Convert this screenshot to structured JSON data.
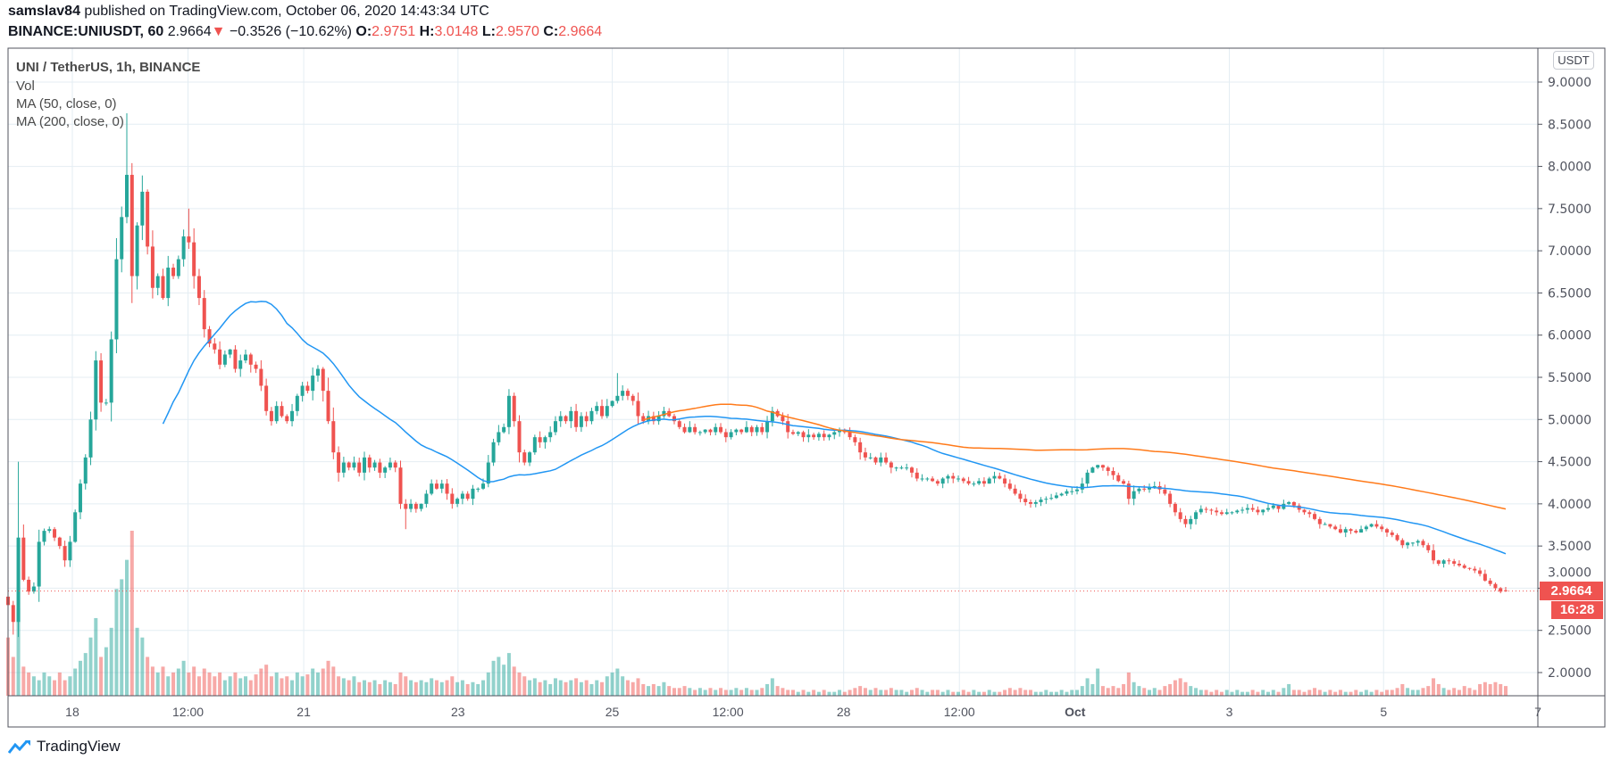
{
  "header": {
    "publisher": "samslav84",
    "published_text": "published on TradingView.com, October 06, 2020 14:43:34 UTC",
    "symbol": "BINANCE:UNIUSDT, 60",
    "last": "2.9664",
    "change": "−0.3526 (−10.62%)",
    "o_label": "O:",
    "o": "2.9751",
    "h_label": "H:",
    "h": "3.0148",
    "l_label": "L:",
    "l": "2.9570",
    "c_label": "C:",
    "c": "2.9664"
  },
  "legend": {
    "title": "UNI / TetherUS, 1h, BINANCE",
    "vol": "Vol",
    "ma50": "MA (50, close, 0)",
    "ma200": "MA (200, close, 0)"
  },
  "axis": {
    "currency": "USDT",
    "price_label": "2.9664",
    "countdown": "16:28"
  },
  "footer": {
    "brand": "TradingView"
  },
  "colors": {
    "up": "#26a69a",
    "down": "#ef5350",
    "ma50": "#2196f3",
    "ma200": "#ff7a1a",
    "grid": "#e4edf3"
  },
  "chart_data": {
    "type": "candlestick",
    "title": "UNI / TetherUS, 1h, BINANCE",
    "start": "2020-09-17T04:00",
    "end": "2020-10-06T14:00",
    "ylim": [
      1.73,
      9.25
    ],
    "y_ticks": [
      "9.0000",
      "8.5000",
      "8.0000",
      "7.5000",
      "7.0000",
      "6.5000",
      "6.0000",
      "5.5000",
      "5.0000",
      "4.5000",
      "4.0000",
      "3.5000",
      "3.0000",
      "2.5000",
      "2.0000"
    ],
    "x_ticks": [
      {
        "label": "18",
        "time": "2020-09-18T00:00"
      },
      {
        "label": "12:00",
        "time": "2020-09-19T12:00"
      },
      {
        "label": "21",
        "time": "2020-09-21T00:00"
      },
      {
        "label": "23",
        "time": "2020-09-23T00:00"
      },
      {
        "label": "25",
        "time": "2020-09-25T00:00"
      },
      {
        "label": "12:00",
        "time": "2020-09-26T12:00"
      },
      {
        "label": "28",
        "time": "2020-09-28T00:00"
      },
      {
        "label": "12:00",
        "time": "2020-09-29T12:00"
      },
      {
        "label": "Oct",
        "time": "2020-10-01T00:00"
      },
      {
        "label": "3",
        "time": "2020-10-03T00:00"
      },
      {
        "label": "5",
        "time": "2020-10-05T00:00"
      },
      {
        "label": "7",
        "time": "2020-10-07T00:00"
      }
    ],
    "closes": [
      2.8,
      2.6,
      3.6,
      3.1,
      2.96,
      3.02,
      3.55,
      3.68,
      3.7,
      3.6,
      3.5,
      3.33,
      3.55,
      3.9,
      4.24,
      4.55,
      5.0,
      5.7,
      5.2,
      5.2,
      5.95,
      6.9,
      7.4,
      7.9,
      6.7,
      7.3,
      7.7,
      7.05,
      6.56,
      6.7,
      6.44,
      6.8,
      6.7,
      6.9,
      7.17,
      7.1,
      6.7,
      6.44,
      6.07,
      5.9,
      5.83,
      5.65,
      5.77,
      5.83,
      5.6,
      5.7,
      5.77,
      5.65,
      5.6,
      5.4,
      5.1,
      4.98,
      5.16,
      5.04,
      4.98,
      5.1,
      5.28,
      5.4,
      5.34,
      5.52,
      5.6,
      5.34,
      4.98,
      4.61,
      4.37,
      4.49,
      4.43,
      4.49,
      4.37,
      4.55,
      4.43,
      4.49,
      4.37,
      4.43,
      4.49,
      4.43,
      4.0,
      3.94,
      4.0,
      3.94,
      4.0,
      4.12,
      4.24,
      4.18,
      4.24,
      4.12,
      4.0,
      4.06,
      4.12,
      4.06,
      4.18,
      4.18,
      4.24,
      4.49,
      4.73,
      4.85,
      4.91,
      5.28,
      4.98,
      4.61,
      4.49,
      4.61,
      4.79,
      4.73,
      4.79,
      4.85,
      4.98,
      5.04,
      4.98,
      5.1,
      4.91,
      5.04,
      4.98,
      5.1,
      5.16,
      5.04,
      5.16,
      5.22,
      5.28,
      5.34,
      5.28,
      5.22,
      5.04,
      4.98,
      5.04,
      4.98,
      5.04,
      5.1,
      5.04,
      4.98,
      4.91,
      4.85,
      4.91,
      4.85,
      4.85,
      4.88,
      4.85,
      4.91,
      4.85,
      4.79,
      4.85,
      4.88,
      4.85,
      4.91,
      4.85,
      4.91,
      4.85,
      4.98,
      5.1,
      5.04,
      4.98,
      4.85,
      4.83,
      4.85,
      4.79,
      4.82,
      4.79,
      4.83,
      4.79,
      4.82,
      4.85,
      4.88,
      4.85,
      4.79,
      4.73,
      4.61,
      4.55,
      4.55,
      4.49,
      4.55,
      4.49,
      4.43,
      4.43,
      4.43,
      4.43,
      4.37,
      4.3,
      4.3,
      4.3,
      4.27,
      4.24,
      4.3,
      4.33,
      4.3,
      4.3,
      4.27,
      4.24,
      4.24,
      4.27,
      4.24,
      4.3,
      4.33,
      4.3,
      4.24,
      4.18,
      4.12,
      4.06,
      4.02,
      4.0,
      4.02,
      4.05,
      4.06,
      4.07,
      4.1,
      4.12,
      4.15,
      4.15,
      4.17,
      4.24,
      4.37,
      4.43,
      4.46,
      4.43,
      4.39,
      4.34,
      4.27,
      4.24,
      4.06,
      4.15,
      4.18,
      4.17,
      4.2,
      4.21,
      4.17,
      4.12,
      4.0,
      3.9,
      3.82,
      3.76,
      3.82,
      3.9,
      3.94,
      3.93,
      3.92,
      3.9,
      3.88,
      3.9,
      3.9,
      3.92,
      3.93,
      3.95,
      3.93,
      3.9,
      3.93,
      3.95,
      3.98,
      3.94,
      4.0,
      4.02,
      3.98,
      3.93,
      3.9,
      3.88,
      3.82,
      3.76,
      3.76,
      3.73,
      3.7,
      3.66,
      3.7,
      3.68,
      3.66,
      3.7,
      3.73,
      3.76,
      3.73,
      3.7,
      3.66,
      3.63,
      3.57,
      3.51,
      3.54,
      3.54,
      3.56,
      3.51,
      3.45,
      3.33,
      3.29,
      3.33,
      3.32,
      3.29,
      3.27,
      3.24,
      3.23,
      3.21,
      3.17,
      3.09,
      3.05,
      3.0,
      2.96,
      2.9664
    ],
    "volumes_relative": [
      30,
      20,
      45,
      15,
      12,
      10,
      8,
      12,
      10,
      8,
      12,
      8,
      10,
      14,
      18,
      22,
      30,
      40,
      20,
      25,
      35,
      55,
      60,
      70,
      85,
      35,
      30,
      20,
      15,
      12,
      15,
      10,
      12,
      14,
      18,
      12,
      15,
      10,
      14,
      12,
      10,
      12,
      8,
      10,
      12,
      9,
      10,
      8,
      11,
      14,
      16,
      10,
      12,
      9,
      10,
      8,
      12,
      10,
      11,
      14,
      12,
      14,
      18,
      15,
      10,
      9,
      8,
      10,
      7,
      8,
      7,
      8,
      6,
      8,
      7,
      6,
      12,
      10,
      8,
      7,
      8,
      7,
      9,
      8,
      7,
      8,
      10,
      7,
      8,
      6,
      7,
      6,
      8,
      12,
      18,
      20,
      16,
      22,
      15,
      12,
      10,
      8,
      9,
      7,
      8,
      6,
      9,
      8,
      7,
      8,
      9,
      7,
      8,
      6,
      8,
      7,
      10,
      12,
      14,
      10,
      8,
      7,
      9,
      6,
      5,
      6,
      5,
      7,
      5,
      4,
      4,
      5,
      4,
      3,
      4,
      3,
      4,
      3,
      4,
      3,
      3,
      4,
      3,
      4,
      3,
      3,
      4,
      6,
      9,
      5,
      4,
      3,
      3,
      2,
      3,
      2,
      3,
      2,
      3,
      2,
      2,
      3,
      2,
      3,
      4,
      5,
      4,
      3,
      4,
      3,
      3,
      4,
      3,
      3,
      2,
      3,
      4,
      3,
      2,
      3,
      3,
      2,
      3,
      2,
      2,
      3,
      2,
      3,
      2,
      2,
      3,
      2,
      2,
      3,
      4,
      3,
      4,
      3,
      3,
      2,
      2,
      3,
      2,
      2,
      3,
      2,
      3,
      3,
      5,
      9,
      6,
      14,
      5,
      4,
      5,
      4,
      6,
      12,
      7,
      5,
      4,
      3,
      4,
      3,
      5,
      6,
      8,
      9,
      7,
      5,
      4,
      3,
      3,
      2,
      3,
      2,
      3,
      2,
      3,
      2,
      2,
      3,
      2,
      3,
      2,
      3,
      2,
      4,
      6,
      3,
      3,
      2,
      3,
      4,
      3,
      2,
      3,
      2,
      3,
      2,
      2,
      3,
      2,
      3,
      2,
      3,
      2,
      3,
      3,
      4,
      6,
      4,
      3,
      3,
      4,
      5,
      9,
      6,
      4,
      3,
      4,
      3,
      5,
      4,
      3,
      6,
      7,
      6,
      7,
      6,
      5
    ],
    "notable_highs": [
      {
        "index": 2,
        "high": 4.5
      },
      {
        "index": 23,
        "high": 8.63
      },
      {
        "index": 35,
        "high": 7.5
      },
      {
        "index": 97,
        "high": 5.36
      },
      {
        "index": 118,
        "high": 5.55
      }
    ],
    "notable_lows": [
      {
        "index": 1,
        "high": null,
        "low": 2.45
      },
      {
        "index": 77,
        "low": 3.7
      }
    ],
    "last_candle": {
      "open": 2.9751,
      "high": 3.0148,
      "low": 2.957,
      "close": 2.9664
    },
    "moving_averages": [
      {
        "name": "MA (50, close, 0)",
        "period_hours": 50
      },
      {
        "name": "MA (200, close, 0)",
        "period_hours": 200
      }
    ]
  }
}
